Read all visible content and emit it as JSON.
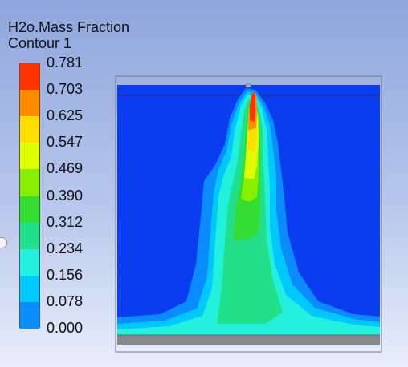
{
  "legend": {
    "title_line1": "H2o.Mass Fraction",
    "title_line2": "Contour 1",
    "levels": [
      {
        "label": "0.781",
        "color": "#ff3300"
      },
      {
        "label": "0.703",
        "color": "#ff8c00"
      },
      {
        "label": "0.625",
        "color": "#ffdd00"
      },
      {
        "label": "0.547",
        "color": "#ddff00"
      },
      {
        "label": "0.469",
        "color": "#88ee00"
      },
      {
        "label": "0.390",
        "color": "#33dd33"
      },
      {
        "label": "0.312",
        "color": "#22e08a"
      },
      {
        "label": "0.234",
        "color": "#22f0dd"
      },
      {
        "label": "0.156",
        "color": "#00c8ff"
      },
      {
        "label": "0.078",
        "color": "#0a8cff"
      },
      {
        "label": "0.000",
        "color": "#0a3cf0"
      }
    ]
  },
  "domain_colors": {
    "background_fluid": "#0a3cf0",
    "floor": "#888888"
  }
}
